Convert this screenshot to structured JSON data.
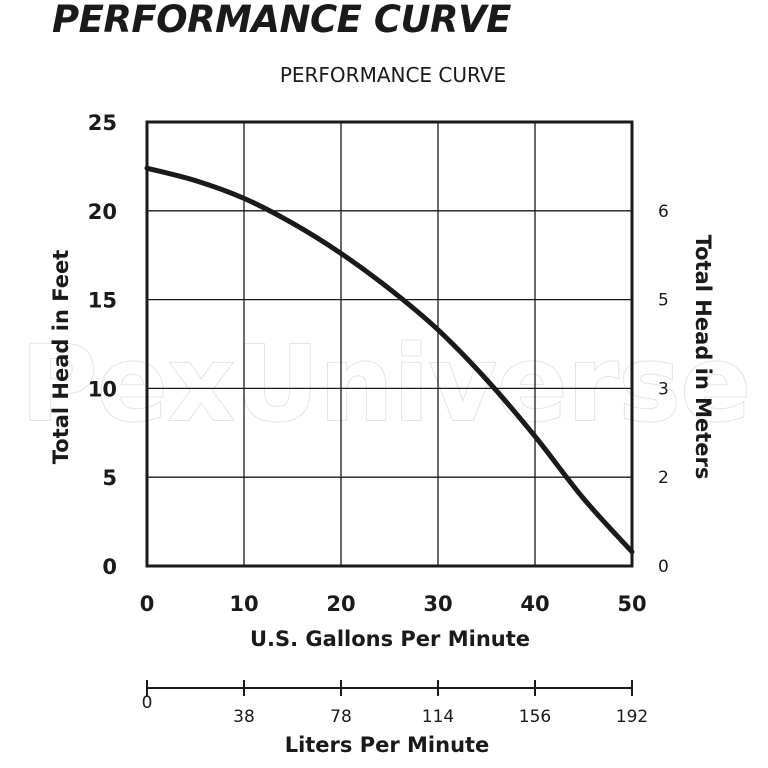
{
  "page_title": "PERFORMANCE CURVE",
  "watermark": "PexUniverse",
  "chart_data": {
    "type": "line",
    "title": "PERFORMANCE CURVE",
    "xlabel": "U.S. Gallons Per Minute",
    "ylabel": "Total Head in Feet",
    "y2label": "Total Head in Meters",
    "x2label": "Liters Per Minute",
    "xlim": [
      0,
      50
    ],
    "ylim": [
      0,
      25
    ],
    "xticks": [
      0,
      10,
      20,
      30,
      40,
      50
    ],
    "yticks": [
      0,
      5,
      10,
      15,
      20,
      25
    ],
    "y2ticks": [
      {
        "label": "0",
        "feet": 0
      },
      {
        "label": "2",
        "feet": 5
      },
      {
        "label": "3",
        "feet": 10
      },
      {
        "label": "5",
        "feet": 15
      },
      {
        "label": "6",
        "feet": 20
      }
    ],
    "x2ticks": [
      {
        "label": "0",
        "gpm": 0
      },
      {
        "label": "38",
        "gpm": 10
      },
      {
        "label": "78",
        "gpm": 20
      },
      {
        "label": "114",
        "gpm": 30
      },
      {
        "label": "156",
        "gpm": 40
      },
      {
        "label": "192",
        "gpm": 50
      }
    ],
    "grid": true,
    "series": [
      {
        "name": "Performance",
        "x": [
          0,
          5,
          10,
          15,
          20,
          25,
          30,
          35,
          40,
          45,
          50
        ],
        "y": [
          22.4,
          21.7,
          20.7,
          19.3,
          17.6,
          15.6,
          13.3,
          10.5,
          7.3,
          3.8,
          0.8
        ]
      }
    ]
  }
}
